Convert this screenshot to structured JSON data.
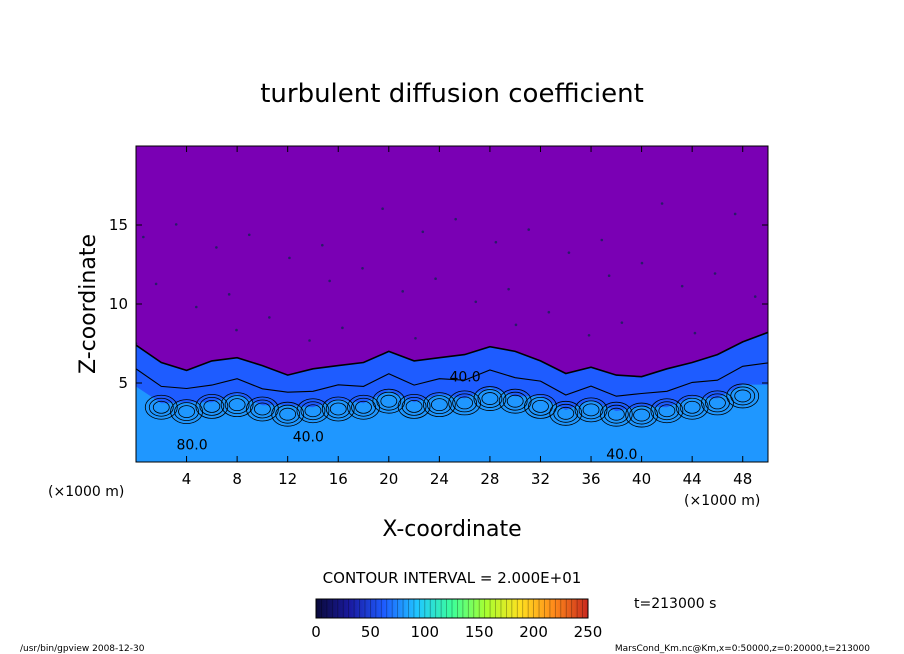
{
  "chart_data": {
    "type": "heatmap",
    "title": "turbulent diffusion coefficient",
    "xlabel": "X-coordinate",
    "ylabel": "Z-coordinate",
    "x_unit_label": "(×1000 m)",
    "y_unit_label": "(×1000 m)",
    "xlim": [
      0,
      50
    ],
    "ylim": [
      0,
      20
    ],
    "x_ticks": [
      4,
      8,
      12,
      16,
      20,
      24,
      28,
      32,
      36,
      40,
      44,
      48
    ],
    "y_ticks": [
      5,
      10,
      15
    ],
    "contour_interval_text": "CONTOUR INTERVAL = 2.000E+01",
    "contour_labels": [
      {
        "text": "80.0",
        "x": 3.2,
        "z": 0.8
      },
      {
        "text": "40.0",
        "x": 12.4,
        "z": 1.3
      },
      {
        "text": "40.0",
        "x": 24.8,
        "z": 5.1
      },
      {
        "text": "40.0",
        "x": 37.2,
        "z": 0.2
      }
    ],
    "colorbar": {
      "min": 0,
      "max": 250,
      "ticks": [
        0,
        50,
        100,
        150,
        200,
        250
      ],
      "colors": [
        "#0a0a3a",
        "#1a1aa0",
        "#1e5cff",
        "#20c8ff",
        "#3cff9a",
        "#a8ff30",
        "#ffe020",
        "#ff8a1a",
        "#c8281e"
      ]
    },
    "background_color": "#7a00b4",
    "time_label": "t=213000 s",
    "turbulent_layer_top_z_by_x": [
      [
        0,
        7.4
      ],
      [
        2,
        6.3
      ],
      [
        4,
        5.8
      ],
      [
        6,
        6.4
      ],
      [
        8,
        6.6
      ],
      [
        10,
        6.1
      ],
      [
        12,
        5.5
      ],
      [
        14,
        5.9
      ],
      [
        16,
        6.1
      ],
      [
        18,
        6.3
      ],
      [
        20,
        7.0
      ],
      [
        22,
        6.4
      ],
      [
        24,
        6.6
      ],
      [
        26,
        6.8
      ],
      [
        28,
        7.3
      ],
      [
        30,
        7.0
      ],
      [
        32,
        6.4
      ],
      [
        34,
        5.6
      ],
      [
        36,
        6.0
      ],
      [
        38,
        5.5
      ],
      [
        40,
        5.4
      ],
      [
        42,
        5.9
      ],
      [
        44,
        6.3
      ],
      [
        46,
        6.8
      ],
      [
        48,
        7.6
      ],
      [
        50,
        8.2
      ]
    ]
  },
  "footer": {
    "left": "/usr/bin/gpview   2008-12-30",
    "right": "MarsCond_Km.nc@Km,x=0:50000,z=0:20000,t=213000"
  }
}
